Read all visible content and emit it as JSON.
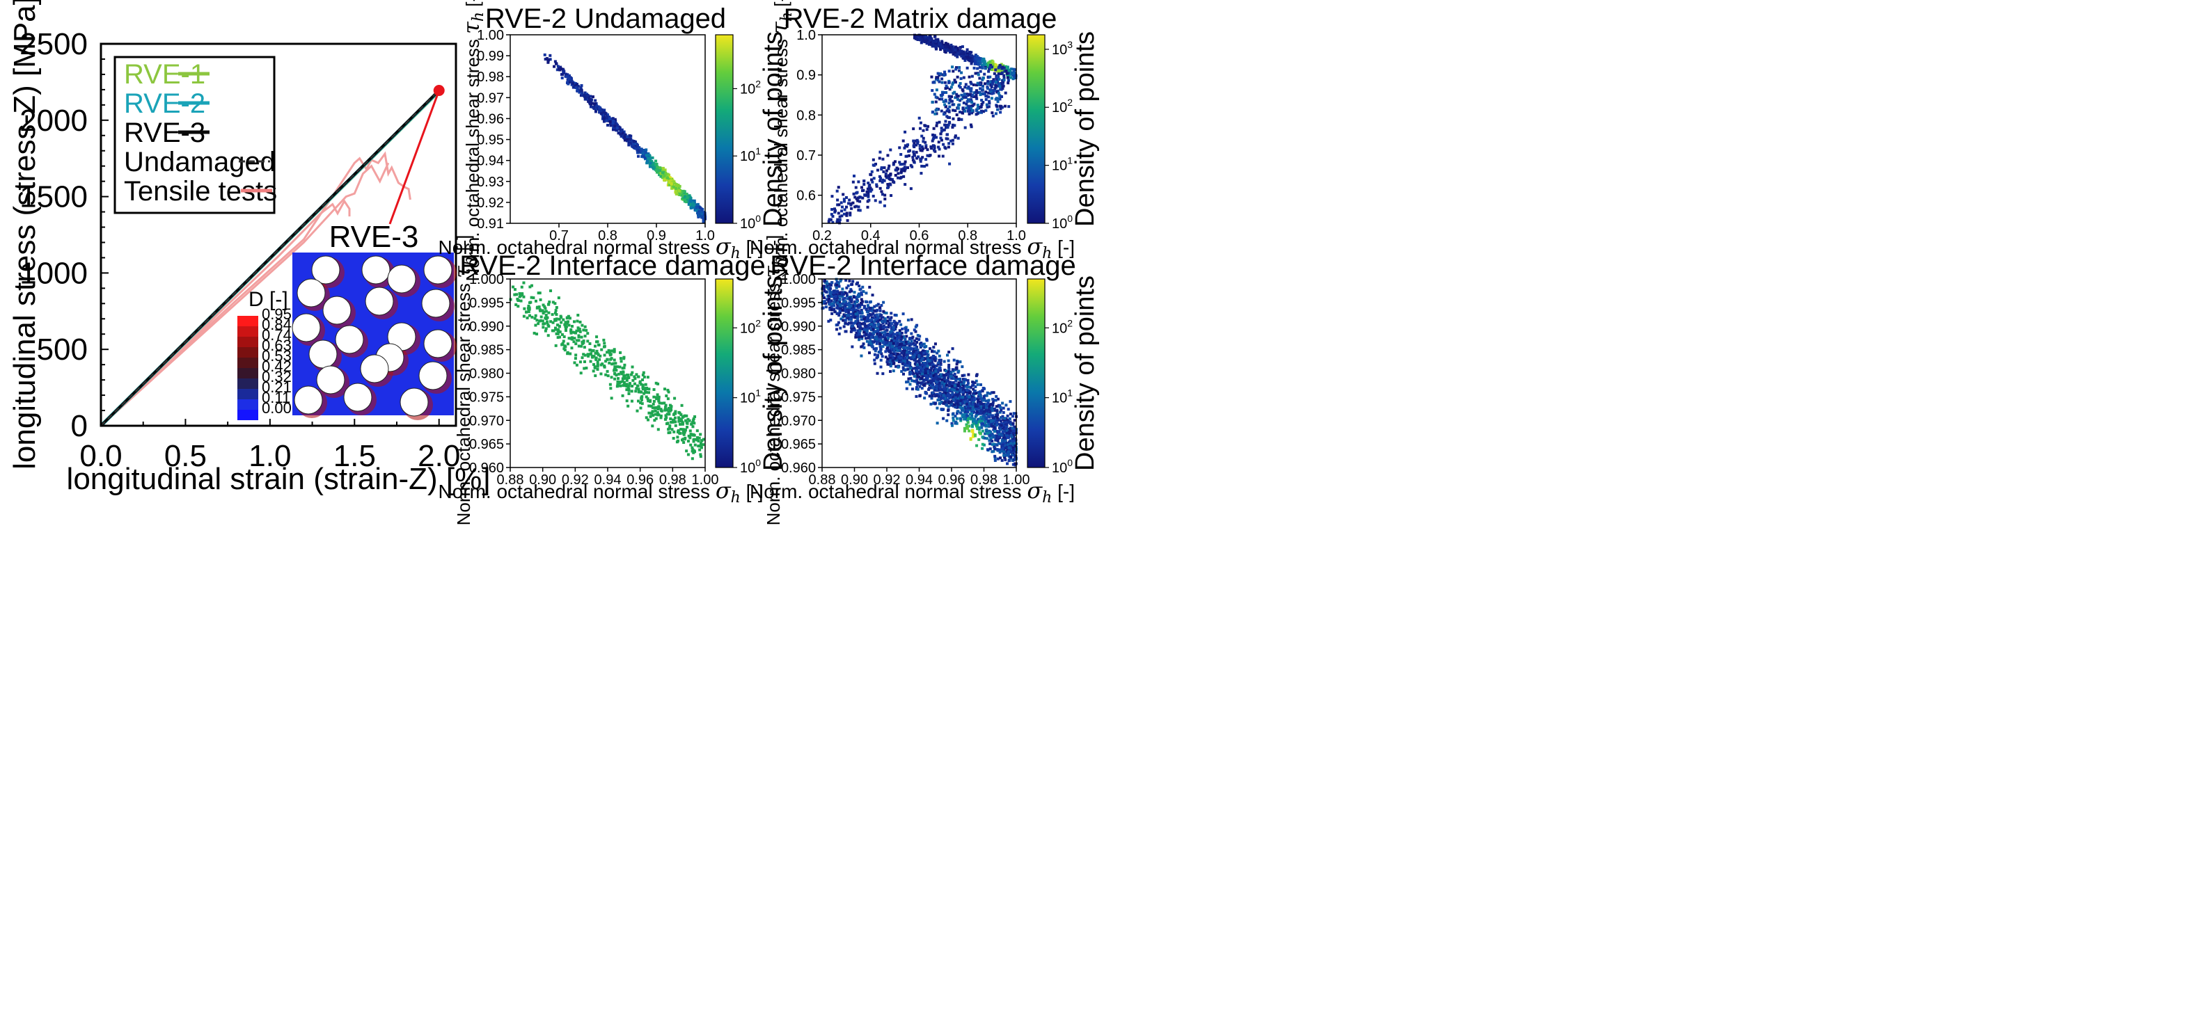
{
  "colors": {
    "rve1": "#8cc63f",
    "rve2": "#1aa3b8",
    "rve3": "#0a0a0a",
    "undamaged": "#333333",
    "tensile": "#f2a0a0",
    "marker": "#e8141c",
    "contour_blue": "#1d2ee6",
    "fiber": "#ffffff"
  },
  "chart_data": [
    {
      "id": "stress-strain",
      "type": "line",
      "title": "",
      "xlabel": "longitudinal strain  (strain-Z)  [%]",
      "ylabel": "longitudinal stress  (stress-Z)  [MPa]",
      "xlim": [
        0,
        2.1
      ],
      "ylim": [
        0,
        2500
      ],
      "xticks": [
        0,
        0.5,
        1.0,
        1.5,
        2.0
      ],
      "xtick_labels": [
        "0.0",
        "0.5",
        "1.0",
        "1.5",
        "2.0"
      ],
      "yticks": [
        0,
        500,
        1000,
        1500,
        2000,
        2500
      ],
      "ytick_labels": [
        "0",
        "500",
        "1000",
        "1500",
        "2000",
        "2500"
      ],
      "legend": {
        "position": "top-left",
        "entries": [
          {
            "label": "RVE-1",
            "color": "#8cc63f",
            "style": "solid"
          },
          {
            "label": "RVE-2",
            "color": "#1aa3b8",
            "style": "solid"
          },
          {
            "label": "RVE-3",
            "color": "#0a0a0a",
            "style": "solid"
          },
          {
            "label": "Undamaged",
            "color": "#333333",
            "style": "dashed"
          },
          {
            "label": "Tensile tests",
            "color": "#f08080",
            "style": "solid"
          }
        ]
      },
      "series": [
        {
          "name": "RVE-1",
          "x": [
            0,
            2.0
          ],
          "y": [
            0,
            2190
          ]
        },
        {
          "name": "RVE-2",
          "x": [
            0,
            2.0
          ],
          "y": [
            0,
            2192
          ]
        },
        {
          "name": "RVE-3",
          "x": [
            0,
            2.0
          ],
          "y": [
            0,
            2195
          ]
        },
        {
          "name": "Undamaged",
          "x": [
            0,
            2.0
          ],
          "y": [
            0,
            2195
          ]
        },
        {
          "name": "Tensile test 1",
          "x": [
            0,
            0.3,
            0.7,
            1.05,
            1.3,
            1.37,
            1.4,
            1.44,
            1.47,
            1.47
          ],
          "y": [
            0,
            300,
            740,
            1110,
            1390,
            1450,
            1390,
            1470,
            1420,
            1370
          ]
        },
        {
          "name": "Tensile test 2",
          "x": [
            0,
            0.4,
            0.8,
            1.2,
            1.5,
            1.53,
            1.57,
            1.6,
            1.64,
            1.68,
            1.7,
            1.72,
            1.76,
            1.8,
            1.82,
            1.83
          ],
          "y": [
            0,
            410,
            820,
            1220,
            1720,
            1750,
            1680,
            1740,
            1720,
            1780,
            1650,
            1690,
            1590,
            1560,
            1550,
            1480
          ]
        },
        {
          "name": "Tensile test 3",
          "x": [
            0,
            0.4,
            0.8,
            1.2,
            1.45,
            1.5,
            1.55,
            1.6,
            1.65,
            1.7
          ],
          "y": [
            0,
            400,
            800,
            1200,
            1500,
            1520,
            1650,
            1700,
            1600,
            1720
          ]
        }
      ],
      "annotations": [
        {
          "text": "RVE-3",
          "target_x": 2.0,
          "target_y": 2195
        },
        {
          "text": "D [-]"
        }
      ],
      "contour_legend": [
        0.95,
        0.84,
        0.74,
        0.63,
        0.53,
        0.42,
        0.32,
        0.21,
        0.11,
        0.0
      ],
      "contour_labels": [
        "0.95",
        "0.84",
        "0.74",
        "0.63",
        "0.53",
        "0.42",
        "0.32",
        "0.21",
        "0.11",
        "0.00"
      ],
      "contour_colors": [
        "#ff1a1a",
        "#cc1414",
        "#a31010",
        "#7a1010",
        "#551218",
        "#36152a",
        "#22205a",
        "#1a2a9a",
        "#1d2ee6",
        "#1414ff"
      ]
    },
    {
      "id": "undamaged",
      "type": "heatmap",
      "title": "RVE-2 Undamaged",
      "xlabel": "Norm. octahedral normal stress",
      "ylabel": "Norm. octahedral shear stress",
      "xsym": "σ",
      "ysym": "τ",
      "sub": "h",
      "unit": "[-]",
      "xlim": [
        0.6,
        1.0
      ],
      "ylim": [
        0.91,
        1.0
      ],
      "xticks": [
        0.7,
        0.8,
        0.9,
        1.0
      ],
      "xtick_labels": [
        "0.7",
        "0.8",
        "0.9",
        "1.0"
      ],
      "yticks": [
        0.91,
        0.92,
        0.93,
        0.94,
        0.95,
        0.96,
        0.97,
        0.98,
        0.99,
        1.0
      ],
      "ytick_labels": [
        "0.91",
        "0.92",
        "0.93",
        "0.94",
        "0.95",
        "0.96",
        "0.97",
        "0.98",
        "0.99",
        "1.00"
      ],
      "colorbar": {
        "label": "Density of points",
        "ticks": [
          "10",
          "10",
          "10"
        ],
        "exps": [
          "0",
          "1",
          "2"
        ],
        "log_min": 0,
        "log_max": 2.8
      }
    },
    {
      "id": "matrix-damage",
      "type": "heatmap",
      "title": "RVE-2 Matrix damage",
      "xlabel": "Norm. octahedral normal stress",
      "ylabel": "Norm. octahedral shear stress",
      "xsym": "σ",
      "ysym": "τ",
      "sub": "h",
      "unit": "[-]",
      "xlim": [
        0.2,
        1.0
      ],
      "ylim": [
        0.53,
        1.0
      ],
      "xticks": [
        0.2,
        0.4,
        0.6,
        0.8,
        1.0
      ],
      "xtick_labels": [
        "0.2",
        "0.4",
        "0.6",
        "0.8",
        "1.0"
      ],
      "yticks": [
        0.6,
        0.7,
        0.8,
        0.9,
        1.0
      ],
      "ytick_labels": [
        "0.6",
        "0.7",
        "0.8",
        "0.9",
        "1.0"
      ],
      "colorbar": {
        "label": "Density of points",
        "ticks": [
          "10",
          "10",
          "10",
          "10"
        ],
        "exps": [
          "0",
          "1",
          "2",
          "3"
        ],
        "log_min": 0,
        "log_max": 3.25
      }
    },
    {
      "id": "interface-damage-a",
      "type": "heatmap",
      "title": "RVE-2 Interface damage",
      "xlabel": "Norm. octahedral normal stress",
      "ylabel": "Norm. octahedral shear stress",
      "xsym": "σ",
      "ysym": "τ",
      "sub": "h",
      "unit": "[-]",
      "xlim": [
        0.88,
        1.0
      ],
      "ylim": [
        0.96,
        1.0
      ],
      "xticks": [
        0.88,
        0.9,
        0.92,
        0.94,
        0.96,
        0.98,
        1.0
      ],
      "xtick_labels": [
        "0.88",
        "0.90",
        "0.92",
        "0.94",
        "0.96",
        "0.98",
        "1.00"
      ],
      "yticks": [
        0.96,
        0.965,
        0.97,
        0.975,
        0.98,
        0.985,
        0.99,
        0.995,
        1.0
      ],
      "ytick_labels": [
        "0.960",
        "0.965",
        "0.970",
        "0.975",
        "0.980",
        "0.985",
        "0.990",
        "0.995",
        "1.000"
      ],
      "colorbar": {
        "label": "Density of points",
        "ticks": [
          "10",
          "10",
          "10"
        ],
        "exps": [
          "0",
          "1",
          "2"
        ],
        "log_min": 0,
        "log_max": 2.7
      }
    },
    {
      "id": "interface-damage-b",
      "type": "heatmap",
      "title": "RVE-2 Interface damage",
      "xlabel": "Norm. octahedral normal stress",
      "ylabel": "Norm. octahedral shear stress",
      "xsym": "σ",
      "ysym": "τ",
      "sub": "h",
      "unit": "[-]",
      "xlim": [
        0.88,
        1.0
      ],
      "ylim": [
        0.96,
        1.0
      ],
      "xticks": [
        0.88,
        0.9,
        0.92,
        0.94,
        0.96,
        0.98,
        1.0
      ],
      "xtick_labels": [
        "0.88",
        "0.90",
        "0.92",
        "0.94",
        "0.96",
        "0.98",
        "1.00"
      ],
      "yticks": [
        0.96,
        0.965,
        0.97,
        0.975,
        0.98,
        0.985,
        0.99,
        0.995,
        1.0
      ],
      "ytick_labels": [
        "0.960",
        "0.965",
        "0.970",
        "0.975",
        "0.980",
        "0.985",
        "0.990",
        "0.995",
        "1.000"
      ],
      "colorbar": {
        "label": "Density of points",
        "ticks": [
          "10",
          "10",
          "10"
        ],
        "exps": [
          "0",
          "1",
          "2"
        ],
        "log_min": 0,
        "log_max": 2.7
      }
    }
  ]
}
